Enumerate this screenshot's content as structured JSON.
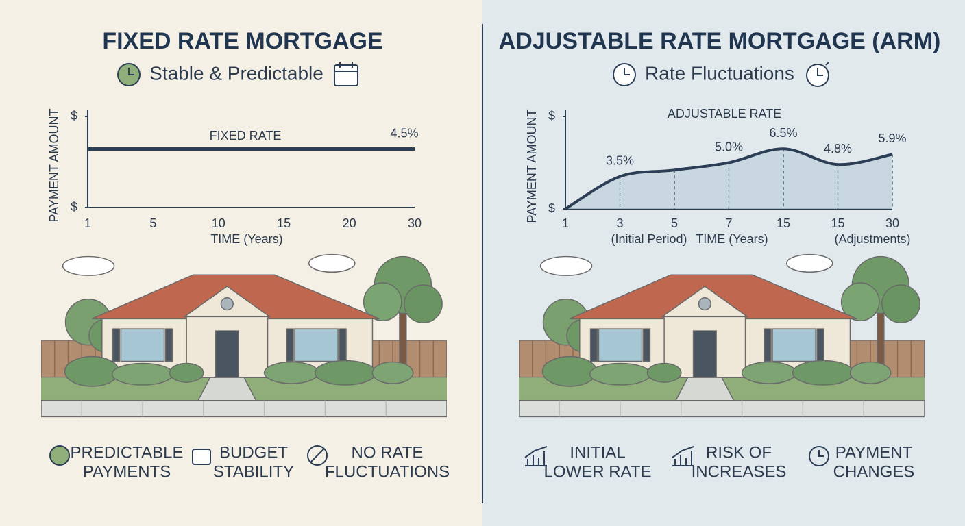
{
  "panels": [
    {
      "title": "FIXED RATE MORTGAGE",
      "subtitle": "Stable & Predictable",
      "features": [
        [
          "PREDICTABLE",
          "PAYMENTS"
        ],
        [
          "BUDGET",
          "STABILITY"
        ],
        [
          "NO RATE",
          "FLUCTUATIONS"
        ]
      ]
    },
    {
      "title": "ADJUSTABLE RATE MORTGAGE (ARM)",
      "subtitle": "Rate Fluctuations",
      "features": [
        [
          "INITIAL",
          "LOWER RATE"
        ],
        [
          "RISK OF",
          "INCREASES"
        ],
        [
          "PAYMENT",
          "CHANGES"
        ]
      ]
    }
  ],
  "chart_data": [
    {
      "type": "line",
      "y_label": "PAYMENT AMOUNT",
      "x_label": "TIME (Years)",
      "categories": [
        "1",
        "5",
        "10",
        "15",
        "20",
        "30"
      ],
      "series": [
        {
          "name": "FIXED RATE",
          "color": "#2c3e55",
          "values": [
            4.5,
            4.5,
            4.5,
            4.5,
            4.5,
            4.5
          ],
          "value_labels": [
            null,
            null,
            null,
            null,
            null,
            "4.5%"
          ]
        }
      ],
      "ylim": [
        0,
        7
      ],
      "yticks": [
        {
          "value": 0,
          "label": "$"
        },
        {
          "value": 7,
          "label": "$"
        }
      ]
    },
    {
      "type": "line",
      "smooth": true,
      "area": true,
      "drop_lines": true,
      "y_label": "PAYMENT AMOUNT",
      "x_label": "TIME (Years)",
      "annotations": [
        "(Initial Period)",
        "(Adjustments)"
      ],
      "categories": [
        "1",
        "3",
        "5",
        "7",
        "15",
        "15",
        "30"
      ],
      "series": [
        {
          "name": "ADJUSTABLE RATE",
          "color": "#2c3e55",
          "area_color": "#c3d2dc",
          "values": [
            0,
            3.5,
            4.2,
            5.0,
            6.5,
            4.8,
            5.9
          ],
          "value_labels": [
            null,
            "3.5%",
            null,
            "5.0%",
            "6.5%",
            "4.8%",
            "5.9%"
          ]
        }
      ],
      "ylim": [
        0,
        10
      ],
      "yticks": [
        {
          "value": 0,
          "label": "$"
        },
        {
          "value": 10,
          "label": "$"
        }
      ]
    }
  ]
}
